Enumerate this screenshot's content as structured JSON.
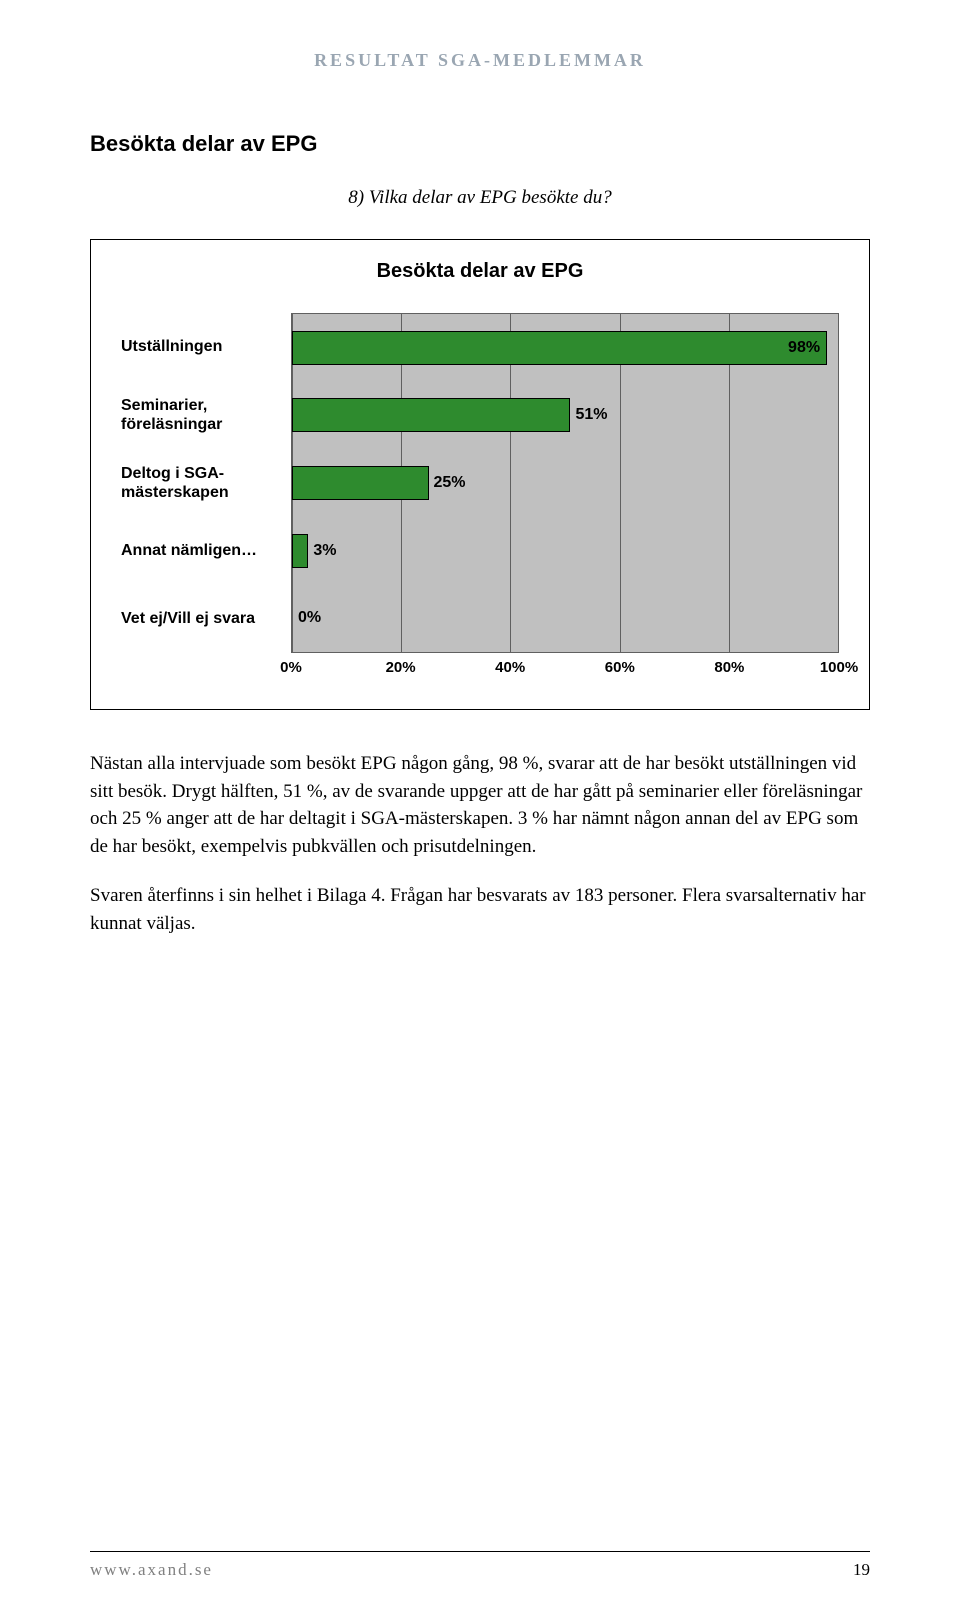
{
  "header": {
    "title": "RESULTAT SGA-MEDLEMMAR"
  },
  "section_title": "Besökta delar av EPG",
  "question": "8) Vilka delar av EPG besökte du?",
  "chart": {
    "type": "bar-horizontal",
    "title": "Besökta delar av EPG",
    "background_color": "#c0c0c0",
    "bar_color": "#2e8b2e",
    "bar_border": "#000000",
    "grid_color": "#606060",
    "xlim": [
      0,
      100
    ],
    "xtick_step": 20,
    "xticks": [
      "0%",
      "20%",
      "40%",
      "60%",
      "80%",
      "100%"
    ],
    "categories": [
      {
        "label": "Utställningen",
        "value": 98,
        "display": "98%"
      },
      {
        "label": "Seminarier, föreläsningar",
        "value": 51,
        "display": "51%"
      },
      {
        "label": "Deltog i SGA-mästerskapen",
        "value": 25,
        "display": "25%"
      },
      {
        "label": "Annat nämligen…",
        "value": 3,
        "display": "3%"
      },
      {
        "label": "Vet ej/Vill ej svara",
        "value": 0,
        "display": "0%"
      }
    ]
  },
  "paragraphs": {
    "p1": "Nästan alla intervjuade som besökt EPG någon gång, 98 %, svarar att de har besökt utställningen vid sitt besök. Drygt hälften, 51 %, av de svarande uppger att de har gått på seminarier eller föreläsningar och 25 % anger att de har deltagit i SGA-mästerskapen. 3 % har nämnt någon annan del av EPG som de har besökt, exempelvis pubkvällen och prisutdelningen.",
    "p2": "Svaren återfinns i sin helhet i Bilaga 4. Frågan har besvarats av 183 personer. Flera svarsalternativ har kunnat väljas."
  },
  "footer": {
    "url": "www.axand.se",
    "page": "19"
  }
}
